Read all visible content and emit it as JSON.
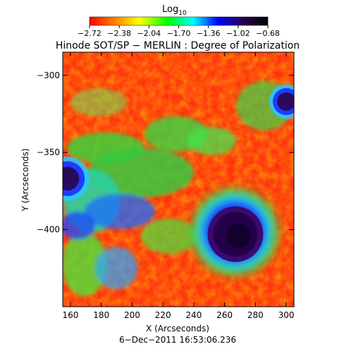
{
  "title": "Hinode SOT/SP − MERLIN : Degree of Polarization",
  "colorbar": {
    "label_main": "Log",
    "label_sub": "10",
    "ticks": [
      "−2.72",
      "−2.38",
      "−2.04",
      "−1.70",
      "−1.36",
      "−1.02",
      "−0.68"
    ],
    "colors": [
      "#ff0000",
      "#ff8000",
      "#ffff00",
      "#00ff00",
      "#00ffff",
      "#0000ff",
      "#2a0050",
      "#000000"
    ]
  },
  "axes": {
    "xlabel": "X (Arcseconds)",
    "ylabel": "Y (Arcseconds)",
    "x_ticks": [
      "160",
      "180",
      "200",
      "220",
      "240",
      "260",
      "280",
      "300"
    ],
    "y_ticks": [
      "−300",
      "−350",
      "−400"
    ],
    "xlim": [
      155,
      305
    ],
    "ylim": [
      -450,
      -285
    ]
  },
  "timestamp": "6−Dec−2011 16:53:06.236",
  "map": {
    "background_color": "#ff2a10",
    "features": [
      {
        "name": "sunspot-umbra",
        "type": "umbra",
        "x": 267,
        "y": -403,
        "radius": 18
      },
      {
        "name": "pore-upper-right",
        "type": "pore",
        "x": 300,
        "y": -317,
        "radius": 7
      },
      {
        "name": "pore-left",
        "type": "pore",
        "x": 158,
        "y": -367,
        "radius": 9
      }
    ]
  }
}
